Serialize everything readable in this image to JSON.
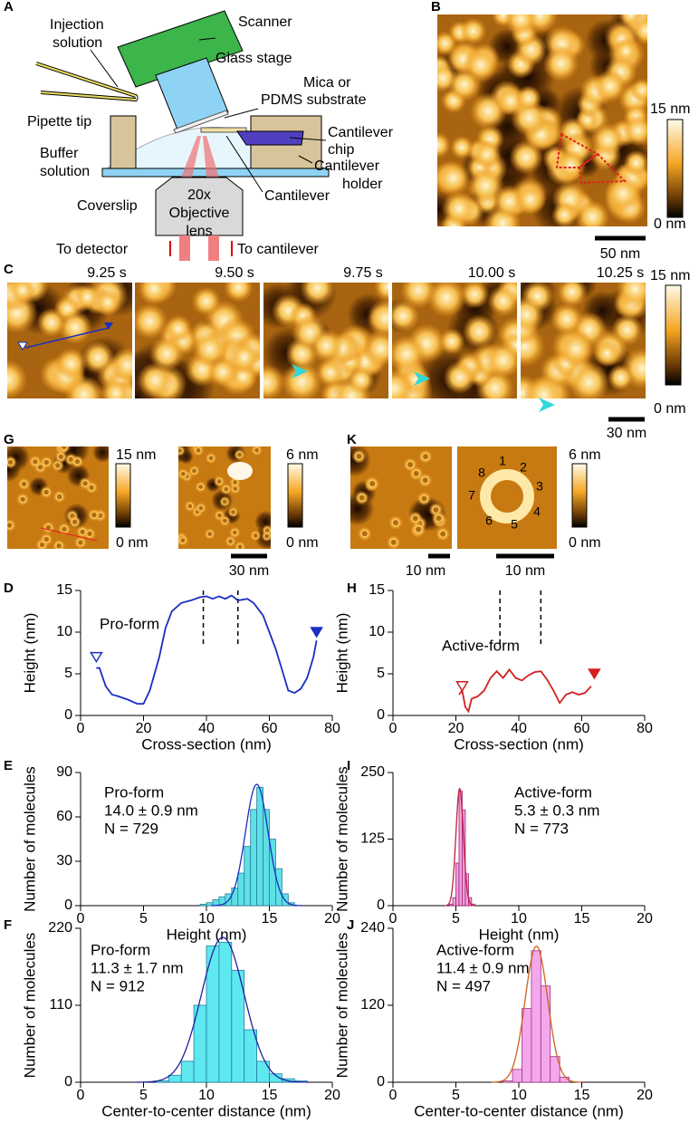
{
  "panel_labels": [
    "A",
    "B",
    "C",
    "G",
    "K",
    "D",
    "H",
    "E",
    "I",
    "F",
    "J"
  ],
  "schematic": {
    "injection_solution": [
      "Injection",
      "solution"
    ],
    "scanner": "Scanner",
    "glass_stage": "Glass stage",
    "substrate": [
      "Mica or",
      "PDMS substrate"
    ],
    "pipette_tip": "Pipette tip",
    "cantilever_chip": [
      "Cantilever",
      "chip"
    ],
    "buffer_solution": [
      "Buffer",
      "solution"
    ],
    "cantilever_holder": [
      "Cantilever",
      "holder"
    ],
    "coverslip": "Coverslip",
    "cantilever": "Cantilever",
    "objective": [
      "20x",
      "Objective",
      "lens"
    ],
    "to_detector": "To detector",
    "to_cantilever": "To cantilever"
  },
  "images": {
    "B": {
      "colorbar_max": "15 nm",
      "colorbar_min": "0 nm",
      "scale_bar": "50 nm"
    },
    "C": {
      "times": [
        "9.25 s",
        "9.50 s",
        "9.75 s",
        "10.00 s",
        "10.25 s"
      ],
      "colorbar_max": "15 nm",
      "colorbar_min": "0 nm",
      "scale_bar": "30 nm"
    },
    "G": {
      "colorbar1_max": "15 nm",
      "colorbar1_min": "0 nm",
      "colorbar2_max": "6 nm",
      "colorbar2_min": "0 nm",
      "scale_bar": "30 nm"
    },
    "K": {
      "subunits": [
        "1",
        "2",
        "3",
        "4",
        "5",
        "6",
        "7",
        "8"
      ],
      "colorbar_max": "6 nm",
      "colorbar_min": "0 nm",
      "scale_bar1": "10 nm",
      "scale_bar2": "10 nm"
    }
  },
  "chart_data": [
    {
      "type": "line",
      "annotation": [
        "Pro-form"
      ],
      "xlabel": "Cross-section (nm)",
      "ylabel": "Height (nm)",
      "xlim": [
        0,
        80
      ],
      "xticks": [
        0,
        20,
        40,
        60,
        80
      ],
      "ylim": [
        0,
        15
      ],
      "yticks": [
        0,
        5,
        10,
        15
      ],
      "color": "#1a2fc0",
      "x": [
        5,
        6,
        8,
        10,
        12,
        15,
        18,
        20,
        22,
        25,
        27,
        29,
        32,
        35,
        38,
        40,
        42,
        44,
        46,
        48,
        50,
        53,
        55,
        58,
        60,
        62,
        64,
        66,
        68,
        70,
        72,
        74,
        75
      ],
      "values": [
        5.7,
        5.7,
        3.5,
        2.5,
        2.3,
        1.9,
        1.4,
        1.4,
        3,
        7,
        10.5,
        12.5,
        13.5,
        13.8,
        14.2,
        14.3,
        14,
        14.3,
        14,
        14.4,
        13.8,
        14,
        13.5,
        12,
        10,
        8,
        5.5,
        3,
        2.7,
        3.2,
        4.5,
        7,
        9
      ],
      "markers": [
        {
          "x": 5,
          "y": 7,
          "filled": false
        },
        {
          "x": 75,
          "y": 10,
          "filled": true
        }
      ],
      "dashed_x": [
        39,
        50
      ]
    },
    {
      "type": "line",
      "annotation": [
        "Active-form"
      ],
      "xlabel": "Cross-section (nm)",
      "ylabel": "Height (nm)",
      "xlim": [
        0,
        80
      ],
      "xticks": [
        0,
        20,
        40,
        60,
        80
      ],
      "ylim": [
        0,
        15
      ],
      "yticks": [
        0,
        5,
        10,
        15
      ],
      "color": "#d42020",
      "x": [
        21,
        22,
        23,
        24,
        25,
        27,
        29,
        31,
        33,
        35,
        37,
        39,
        41,
        43,
        45,
        47,
        49,
        51,
        53,
        55,
        57,
        59,
        61,
        63
      ],
      "values": [
        2.5,
        3,
        1,
        0.5,
        2,
        2.3,
        3,
        4.5,
        5.3,
        4.5,
        5.5,
        4.5,
        4.2,
        4.8,
        5.2,
        5.3,
        4.3,
        3,
        1.5,
        2.5,
        2.8,
        2.5,
        2.7,
        3.5
      ],
      "markers": [
        {
          "x": 22,
          "y": 3.5,
          "filled": false
        },
        {
          "x": 64,
          "y": 5,
          "filled": true
        }
      ],
      "dashed_x": [
        34,
        47
      ]
    },
    {
      "type": "histogram",
      "annotation": [
        "Pro-form",
        "14.0 ± 0.9 nm",
        "N = 729"
      ],
      "xlabel": "Height (nm)",
      "ylabel": "Number of molecules",
      "xlim": [
        0,
        20
      ],
      "xticks": [
        0,
        5,
        10,
        15,
        20
      ],
      "ylim": [
        0,
        90
      ],
      "yticks": [
        0,
        30,
        60,
        90
      ],
      "color": "#5de0e6",
      "edge_color": "#2a7f98",
      "fit_color": "#1a2fc0",
      "bins": [
        9.5,
        10,
        10.5,
        11,
        11.5,
        12,
        12.5,
        13,
        13.5,
        14,
        14.5,
        15,
        15.5,
        16,
        16.5,
        17
      ],
      "counts": [
        1,
        2,
        4,
        6,
        8,
        12,
        22,
        40,
        65,
        80,
        65,
        45,
        25,
        8,
        2
      ],
      "fit": {
        "mean": 14.0,
        "sd": 0.9,
        "peak": 82
      }
    },
    {
      "type": "histogram",
      "annotation": [
        "Active-form",
        "5.3 ± 0.3 nm",
        "N = 773"
      ],
      "xlabel": "Height (nm)",
      "ylabel": "Number of molecules",
      "xlim": [
        0,
        20
      ],
      "xticks": [
        0,
        5,
        10,
        15,
        20
      ],
      "ylim": [
        0,
        250
      ],
      "yticks": [
        0,
        125,
        250
      ],
      "color": "#f0a0e0",
      "edge_color": "#a0206a",
      "fit_color": "#c02040",
      "bins": [
        4.5,
        4.75,
        5,
        5.25,
        5.5,
        5.75,
        6,
        6.25,
        6.5
      ],
      "counts": [
        3,
        15,
        80,
        215,
        180,
        60,
        15,
        3
      ],
      "fit": {
        "mean": 5.3,
        "sd": 0.3,
        "peak": 220
      }
    },
    {
      "type": "histogram",
      "annotation": [
        "Pro-form",
        "11.3 ± 1.7 nm",
        "N = 912"
      ],
      "xlabel": "Center-to-center distance (nm)",
      "ylabel": "Number of molecules",
      "xlim": [
        0,
        20
      ],
      "xticks": [
        0,
        5,
        10,
        15,
        20
      ],
      "ylim": [
        0,
        220
      ],
      "yticks": [
        0,
        110,
        220
      ],
      "color": "#5ee8ef",
      "edge_color": "#2080a0",
      "fit_color": "#2020a0",
      "bins": [
        6,
        7,
        8,
        9,
        10,
        11,
        12,
        13,
        14,
        15,
        16,
        17,
        18
      ],
      "counts": [
        2,
        10,
        30,
        110,
        195,
        200,
        160,
        75,
        30,
        12,
        5,
        2
      ],
      "fit": {
        "mean": 11.3,
        "sd": 1.7,
        "peak": 207
      }
    },
    {
      "type": "histogram",
      "annotation": [
        "Active-form",
        "11.4 ± 0.9 nm",
        "N = 497"
      ],
      "xlabel": "Center-to-center distance (nm)",
      "ylabel": "Number of molecules",
      "xlim": [
        0,
        20
      ],
      "xticks": [
        0,
        5,
        10,
        15,
        20
      ],
      "ylim": [
        0,
        240
      ],
      "yticks": [
        0,
        120,
        240
      ],
      "color": "#f4a8ec",
      "edge_color": "#a03080",
      "fit_color": "#d06020",
      "bins": [
        8.75,
        9.5,
        10.25,
        11,
        11.75,
        12.5,
        13.25,
        14
      ],
      "counts": [
        2,
        20,
        115,
        205,
        150,
        40,
        8
      ],
      "fit": {
        "mean": 11.4,
        "sd": 0.9,
        "peak": 212
      }
    }
  ]
}
